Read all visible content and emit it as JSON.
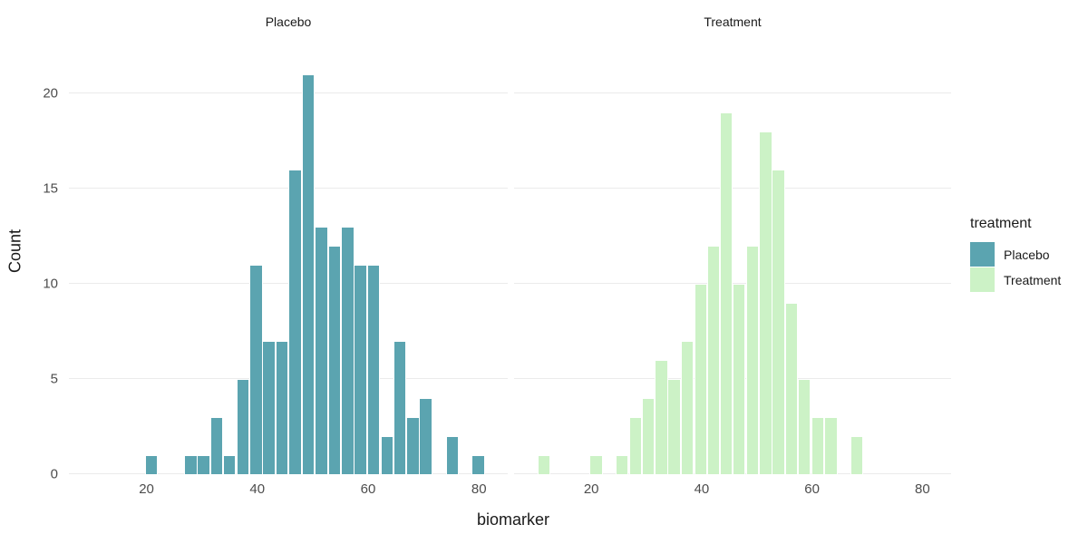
{
  "chart_data": {
    "type": "histogram",
    "title": "",
    "xlabel": "biomarker",
    "ylabel": "Count",
    "facet_by": "treatment",
    "xlim": [
      6.0,
      85.2
    ],
    "ylim": [
      0,
      22.3
    ],
    "x_ticks": [
      20,
      40,
      60,
      80
    ],
    "y_ticks": [
      0,
      5,
      10,
      15,
      20
    ],
    "binwidth": 2.36,
    "grid": "horizontal-major-only",
    "grid_color": "#EBEBEB",
    "background_color": "#FFFFFF",
    "axis_text_color": "#4D4D4D",
    "legend": {
      "title": "treatment",
      "position": "right",
      "entries": [
        {
          "label": "Placebo",
          "color": "#5BA4B0"
        },
        {
          "label": "Treatment",
          "color": "#CCF2C6"
        }
      ]
    },
    "facets": [
      {
        "title": "Placebo",
        "fill": "#5BA4B0",
        "bins": [
          {
            "x": 20.9,
            "count": 1
          },
          {
            "x": 28.0,
            "count": 1
          },
          {
            "x": 30.3,
            "count": 1
          },
          {
            "x": 32.7,
            "count": 3
          },
          {
            "x": 35.0,
            "count": 1
          },
          {
            "x": 37.4,
            "count": 5
          },
          {
            "x": 39.8,
            "count": 11
          },
          {
            "x": 42.1,
            "count": 7
          },
          {
            "x": 44.5,
            "count": 7
          },
          {
            "x": 46.8,
            "count": 16
          },
          {
            "x": 49.2,
            "count": 21
          },
          {
            "x": 51.6,
            "count": 13
          },
          {
            "x": 53.9,
            "count": 12
          },
          {
            "x": 56.3,
            "count": 13
          },
          {
            "x": 58.6,
            "count": 11
          },
          {
            "x": 61.0,
            "count": 11
          },
          {
            "x": 63.4,
            "count": 2
          },
          {
            "x": 65.7,
            "count": 7
          },
          {
            "x": 68.1,
            "count": 3
          },
          {
            "x": 70.4,
            "count": 4
          },
          {
            "x": 75.2,
            "count": 2
          },
          {
            "x": 79.9,
            "count": 1
          }
        ]
      },
      {
        "title": "Treatment",
        "fill": "#CCF2C6",
        "bins": [
          {
            "x": 11.4,
            "count": 1
          },
          {
            "x": 20.9,
            "count": 1
          },
          {
            "x": 25.6,
            "count": 1
          },
          {
            "x": 28.0,
            "count": 3
          },
          {
            "x": 30.3,
            "count": 4
          },
          {
            "x": 32.7,
            "count": 6
          },
          {
            "x": 35.0,
            "count": 5
          },
          {
            "x": 37.4,
            "count": 7
          },
          {
            "x": 39.8,
            "count": 10
          },
          {
            "x": 42.1,
            "count": 12
          },
          {
            "x": 44.5,
            "count": 19
          },
          {
            "x": 46.8,
            "count": 10
          },
          {
            "x": 49.2,
            "count": 12
          },
          {
            "x": 51.6,
            "count": 18
          },
          {
            "x": 53.9,
            "count": 16
          },
          {
            "x": 56.3,
            "count": 9
          },
          {
            "x": 58.6,
            "count": 5
          },
          {
            "x": 61.0,
            "count": 3
          },
          {
            "x": 63.4,
            "count": 3
          },
          {
            "x": 68.1,
            "count": 2
          }
        ]
      }
    ]
  }
}
